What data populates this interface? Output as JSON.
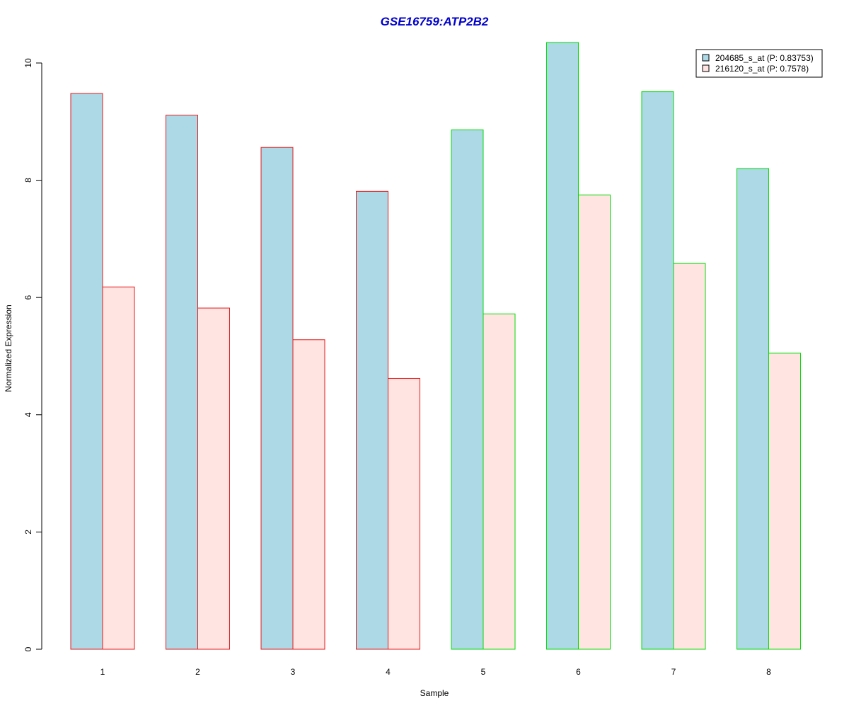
{
  "chart_data": {
    "type": "bar",
    "title": "GSE16759:ATP2B2",
    "xlabel": "Sample",
    "ylabel": "Normalized Expression",
    "categories": [
      "1",
      "2",
      "3",
      "4",
      "5",
      "6",
      "7",
      "8"
    ],
    "series": [
      {
        "name": "204685_s_at (P: 0.83753)",
        "values": [
          9.48,
          9.11,
          8.56,
          7.81,
          8.86,
          10.35,
          9.51,
          8.2
        ],
        "fill": "#add8e6"
      },
      {
        "name": "216120_s_at (P: 0.7578)",
        "values": [
          6.18,
          5.82,
          5.28,
          4.62,
          5.72,
          7.75,
          6.58,
          5.05
        ],
        "fill": "#ffe4e1"
      }
    ],
    "group_border_colors": [
      "#e41a1c",
      "#e41a1c",
      "#e41a1c",
      "#e41a1c",
      "#00dd00",
      "#00dd00",
      "#00dd00",
      "#00dd00"
    ],
    "yticks": [
      0,
      2,
      4,
      6,
      8,
      10
    ],
    "ylim": [
      0,
      10.35
    ],
    "title_color": "#0000cc",
    "legend_position": "top-right",
    "grid": false
  }
}
